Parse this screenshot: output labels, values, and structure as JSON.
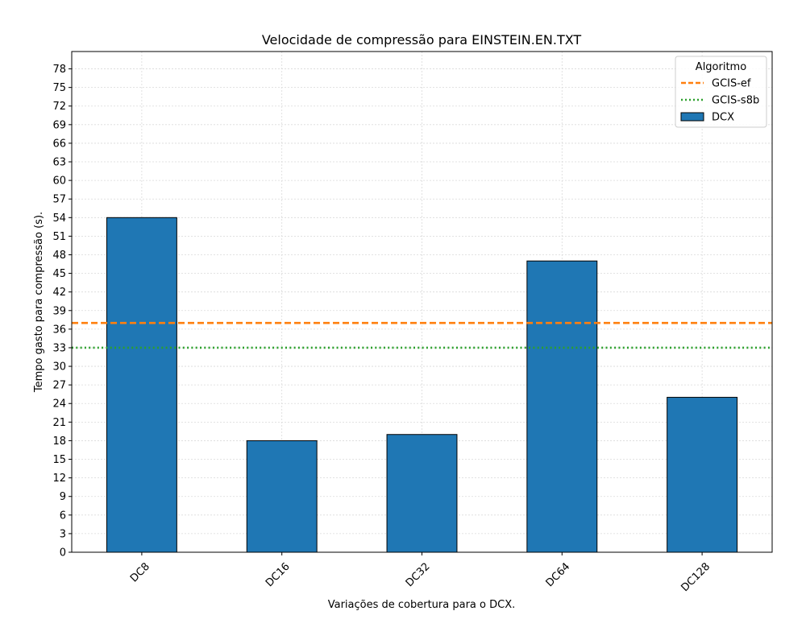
{
  "chart_data": {
    "type": "bar",
    "title": "Velocidade de compressão para  EINSTEIN.EN.TXT",
    "xlabel": "Variações de cobertura para o DCX.",
    "ylabel": "Tempo gasto para compressão (s).",
    "categories": [
      "DC8",
      "DC16",
      "DC32",
      "DC64",
      "DC128"
    ],
    "series": [
      {
        "name": "DCX",
        "values": [
          54,
          18,
          19,
          47,
          25
        ],
        "color": "#1f77b4"
      }
    ],
    "reference_lines": [
      {
        "name": "GCIS-ef",
        "value": 37,
        "color": "#ff7f0e",
        "style": "dashed"
      },
      {
        "name": "GCIS-s8b",
        "value": 33,
        "color": "#2ca02c",
        "style": "dotted"
      }
    ],
    "ylim": [
      0,
      80.8
    ],
    "yticks": [
      0,
      3,
      6,
      9,
      12,
      15,
      18,
      21,
      24,
      27,
      30,
      33,
      36,
      39,
      42,
      45,
      48,
      51,
      54,
      57,
      60,
      63,
      66,
      69,
      72,
      75,
      78
    ],
    "grid": true,
    "legend": {
      "title": "Algoritmo",
      "position": "top-right"
    }
  }
}
